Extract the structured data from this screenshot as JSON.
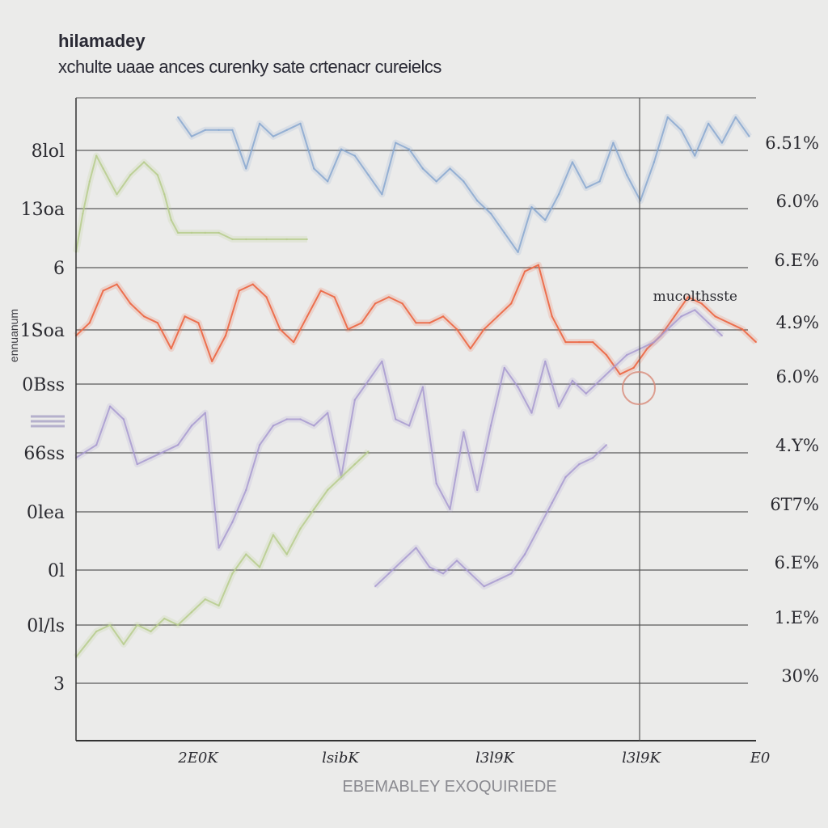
{
  "colors": {
    "background": "#ebebea",
    "grid": "#5a5a5a",
    "blue": "#88a8d0",
    "green": "#b6cc8c",
    "red": "#ec6a48",
    "purple": "#a89ad0"
  },
  "chart_data": {
    "type": "line",
    "title": "hilamadey",
    "subtitle": "xchulte uaae ances curenky sate crtenacr cureielcs",
    "xlabel": "EBEMABLEY EXOQUIRIEDE",
    "ylabel": "ennuanum",
    "annotation": "mucolthsste",
    "y_left_ticks": [
      "8lol",
      "13oa",
      "6",
      "1Soa",
      "0Bss",
      "66ss",
      "0lea",
      "0l",
      "0l/ls",
      "3"
    ],
    "y_right_ticks": [
      "6.51%",
      "6.0%",
      "6.E%",
      "4.9%",
      "6.0%",
      "4.Y%",
      "6T7%",
      "6.E%",
      "1.E%",
      "30%"
    ],
    "x_ticks": [
      "2E0K",
      "lsibK",
      "l3l9K",
      "l3l9K",
      "E0"
    ],
    "x_range": [
      0,
      100
    ],
    "y_range": [
      0,
      10
    ],
    "series": [
      {
        "name": "blue",
        "x": [
          15,
          17,
          19,
          21,
          23,
          25,
          27,
          29,
          31,
          33,
          35,
          37,
          39,
          41,
          43,
          45,
          47,
          49,
          51,
          53,
          55,
          57,
          59,
          61,
          63,
          65,
          67,
          69,
          71,
          73,
          75,
          77,
          79,
          81,
          83,
          85,
          87,
          89,
          91,
          93,
          95,
          97,
          99
        ],
        "values": [
          9.7,
          9.4,
          9.5,
          9.5,
          9.5,
          8.9,
          9.6,
          9.4,
          9.5,
          9.6,
          8.9,
          8.7,
          9.2,
          9.1,
          8.8,
          8.5,
          9.3,
          9.2,
          8.9,
          8.7,
          8.9,
          8.7,
          8.4,
          8.2,
          7.9,
          7.6,
          8.3,
          8.1,
          8.5,
          9.0,
          8.6,
          8.7,
          9.3,
          8.8,
          8.4,
          9.0,
          9.7,
          9.5,
          9.1,
          9.6,
          9.3,
          9.7,
          9.4
        ]
      },
      {
        "name": "green",
        "x": [
          0,
          1,
          2,
          3,
          4,
          6,
          8,
          10,
          12,
          13,
          14,
          15,
          17,
          19,
          21,
          23,
          25,
          28,
          31,
          34
        ],
        "values": [
          7.6,
          8.2,
          8.7,
          9.1,
          8.9,
          8.5,
          8.8,
          9.0,
          8.8,
          8.5,
          8.1,
          7.9,
          7.9,
          7.9,
          7.9,
          7.8,
          7.8,
          7.8,
          7.8,
          7.8
        ]
      },
      {
        "name": "red",
        "x": [
          0,
          2,
          4,
          6,
          8,
          10,
          12,
          14,
          16,
          18,
          20,
          22,
          24,
          26,
          28,
          30,
          32,
          34,
          36,
          38,
          40,
          42,
          44,
          46,
          48,
          50,
          52,
          54,
          56,
          58,
          60,
          62,
          64,
          66,
          68,
          70,
          72,
          74,
          76,
          78,
          80,
          82,
          84,
          86,
          88,
          90,
          92,
          94,
          96,
          98,
          100
        ],
        "values": [
          6.3,
          6.5,
          7.0,
          7.1,
          6.8,
          6.6,
          6.5,
          6.1,
          6.6,
          6.5,
          5.9,
          6.3,
          7.0,
          7.1,
          6.9,
          6.4,
          6.2,
          6.6,
          7.0,
          6.9,
          6.4,
          6.5,
          6.8,
          6.9,
          6.8,
          6.5,
          6.5,
          6.6,
          6.4,
          6.1,
          6.4,
          6.6,
          6.8,
          7.3,
          7.4,
          6.6,
          6.2,
          6.2,
          6.2,
          6.0,
          5.7,
          5.8,
          6.1,
          6.3,
          6.6,
          6.9,
          6.8,
          6.6,
          6.5,
          6.4,
          6.2
        ]
      },
      {
        "name": "purple",
        "x": [
          0,
          3,
          5,
          7,
          9,
          11,
          13,
          15,
          17,
          19,
          21,
          23,
          25,
          27,
          29,
          31,
          33,
          35,
          37,
          39,
          41,
          43,
          45,
          47,
          49,
          51,
          53,
          55,
          57,
          59,
          61,
          63,
          65,
          67,
          69,
          71,
          73,
          75,
          77,
          79,
          81,
          83,
          85,
          87,
          89,
          91,
          93,
          95
        ],
        "values": [
          4.4,
          4.6,
          5.2,
          5.0,
          4.3,
          4.4,
          4.5,
          4.6,
          4.9,
          5.1,
          3.0,
          3.4,
          3.9,
          4.6,
          4.9,
          5.0,
          5.0,
          4.9,
          5.1,
          4.1,
          5.3,
          5.6,
          5.9,
          5.0,
          4.9,
          5.5,
          4.0,
          3.6,
          4.8,
          3.9,
          4.9,
          5.8,
          5.5,
          5.1,
          5.9,
          5.2,
          5.6,
          5.4,
          5.6,
          5.8,
          6.0,
          6.1,
          6.2,
          6.4,
          6.6,
          6.7,
          6.5,
          6.3
        ]
      },
      {
        "name": "green-lower",
        "x": [
          0,
          3,
          5,
          7,
          9,
          11,
          13,
          15,
          17,
          19,
          21,
          23,
          25,
          27,
          29,
          31,
          33,
          35,
          37,
          39,
          41,
          43
        ],
        "values": [
          1.3,
          1.7,
          1.8,
          1.5,
          1.8,
          1.7,
          1.9,
          1.8,
          2.0,
          2.2,
          2.1,
          2.6,
          2.9,
          2.7,
          3.2,
          2.9,
          3.3,
          3.6,
          3.9,
          4.1,
          4.3,
          4.5
        ]
      },
      {
        "name": "purple-lower",
        "x": [
          44,
          46,
          48,
          50,
          52,
          54,
          56,
          58,
          60,
          62,
          64,
          66,
          68,
          70,
          72,
          74,
          76,
          78
        ],
        "values": [
          2.4,
          2.6,
          2.8,
          3.0,
          2.7,
          2.6,
          2.8,
          2.6,
          2.4,
          2.5,
          2.6,
          2.9,
          3.3,
          3.7,
          4.1,
          4.3,
          4.4,
          4.6
        ]
      }
    ]
  }
}
